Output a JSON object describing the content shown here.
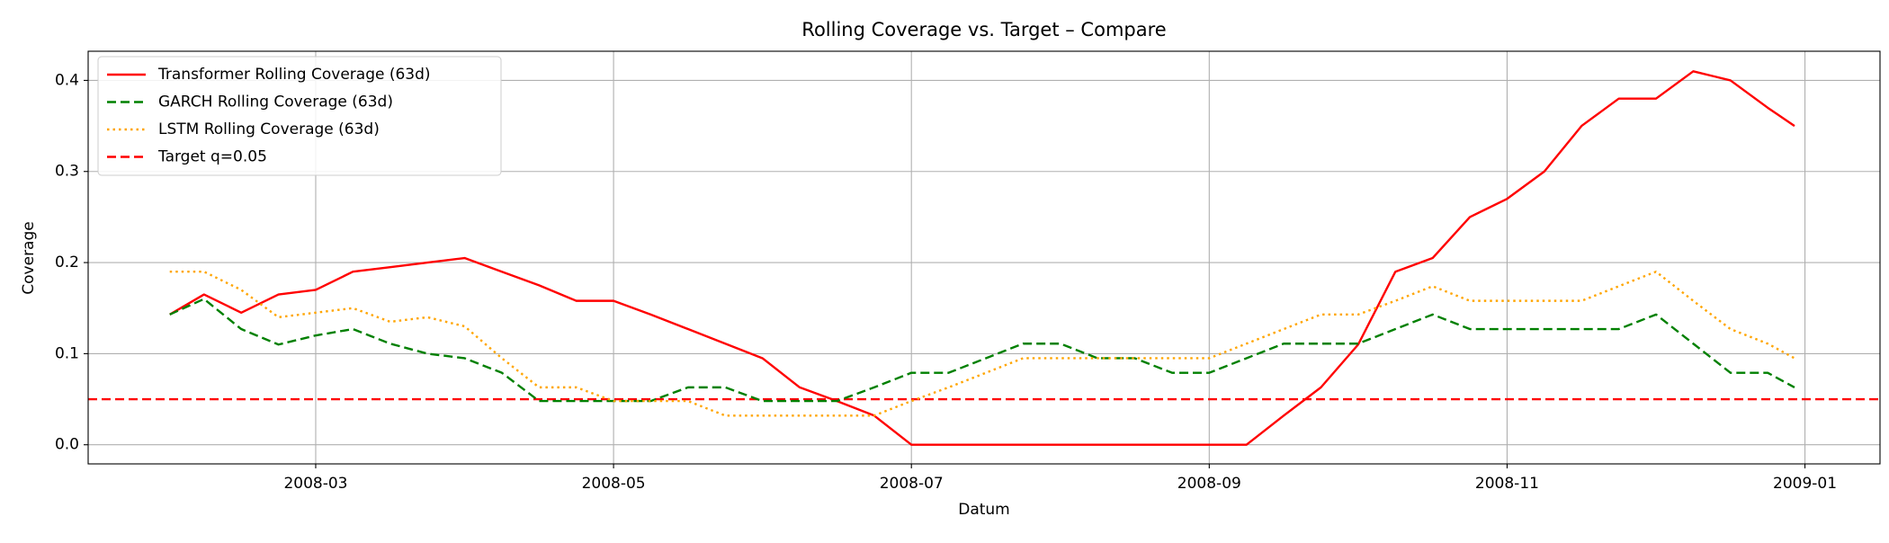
{
  "chart_data": {
    "type": "line",
    "title": "Rolling Coverage vs. Target – Compare",
    "xlabel": "Datum",
    "ylabel": "Coverage",
    "x": [
      2.02,
      2.25,
      2.5,
      2.75,
      3,
      3.25,
      3.5,
      3.75,
      4,
      4.25,
      4.5,
      4.75,
      5,
      5.25,
      5.5,
      5.75,
      6,
      6.25,
      6.5,
      6.75,
      7,
      7.25,
      7.5,
      7.75,
      8,
      8.25,
      8.5,
      8.75,
      9,
      9.25,
      9.5,
      9.75,
      10,
      10.25,
      10.5,
      10.75,
      11,
      11.25,
      11.5,
      11.75,
      12,
      12.25,
      12.5,
      12.75,
      12.93
    ],
    "series": [
      {
        "name": "Transformer Rolling Coverage (63d)",
        "color": "#ff0000",
        "dash": "solid",
        "values": [
          0.143,
          0.165,
          0.145,
          0.165,
          0.17,
          0.19,
          0.195,
          0.2,
          0.205,
          0.19,
          0.175,
          0.158,
          0.158,
          0.143,
          0.127,
          0.111,
          0.095,
          0.063,
          0.048,
          0.032,
          0,
          0,
          0,
          0,
          0,
          0,
          0,
          0,
          0,
          0,
          0.032,
          0.063,
          0.11,
          0.19,
          0.205,
          0.25,
          0.27,
          0.3,
          0.35,
          0.38,
          0.38,
          0.41,
          0.4,
          0.37,
          0.35
        ]
      },
      {
        "name": "GARCH Rolling Coverage (63d)",
        "color": "#008000",
        "dash": "dashed",
        "values": [
          0.143,
          0.16,
          0.127,
          0.11,
          0.12,
          0.127,
          0.111,
          0.1,
          0.095,
          0.079,
          0.048,
          0.048,
          0.048,
          0.048,
          0.063,
          0.063,
          0.048,
          0.048,
          0.048,
          0.063,
          0.079,
          0.079,
          0.095,
          0.111,
          0.111,
          0.095,
          0.095,
          0.079,
          0.079,
          0.095,
          0.111,
          0.111,
          0.111,
          0.127,
          0.143,
          0.127,
          0.127,
          0.127,
          0.127,
          0.127,
          0.143,
          0.111,
          0.079,
          0.079,
          0.063
        ]
      },
      {
        "name": "LSTM Rolling Coverage (63d)",
        "color": "#ffa500",
        "dash": "dotted",
        "values": [
          0.19,
          0.19,
          0.17,
          0.14,
          0.145,
          0.15,
          0.135,
          0.14,
          0.13,
          0.095,
          0.063,
          0.063,
          0.048,
          0.048,
          0.048,
          0.032,
          0.032,
          0.032,
          0.032,
          0.032,
          0.048,
          0.063,
          0.079,
          0.095,
          0.095,
          0.095,
          0.095,
          0.095,
          0.095,
          0.111,
          0.127,
          0.143,
          0.143,
          0.158,
          0.174,
          0.158,
          0.158,
          0.158,
          0.158,
          0.174,
          0.19,
          0.158,
          0.127,
          0.111,
          0.095
        ]
      }
    ],
    "hlines": [
      {
        "name": "Target q=0.05",
        "value": 0.05,
        "color": "#ff0000",
        "dash": "dashed"
      }
    ],
    "xlim": [
      1.472,
      13.504
    ],
    "xticks": [
      {
        "value": 3,
        "label": "2008-03"
      },
      {
        "value": 5,
        "label": "2008-05"
      },
      {
        "value": 7,
        "label": "2008-07"
      },
      {
        "value": 9,
        "label": "2008-09"
      },
      {
        "value": 11,
        "label": "2008-11"
      },
      {
        "value": 13,
        "label": "2009-01"
      }
    ],
    "ylim": [
      -0.021,
      0.432
    ],
    "yticks": [
      {
        "value": 0,
        "label": "0.0"
      },
      0.1,
      0.2,
      0.3,
      0.4
    ],
    "grid": true,
    "legend": "upper left"
  }
}
